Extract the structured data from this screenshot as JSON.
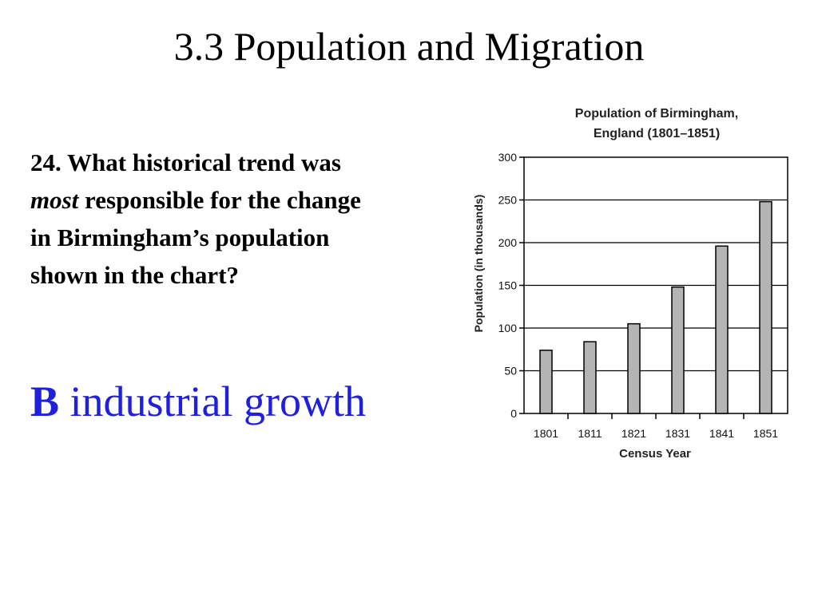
{
  "slide": {
    "title": "3.3  Population and Migration"
  },
  "question": {
    "number": "24.",
    "line1_rest": "What historical trend was",
    "line2_em": "most",
    "line2_rest": " responsible for the change",
    "line3": "in Birmingham’s population",
    "line4": "shown in the chart?"
  },
  "answer": {
    "letter": "B",
    "text": "industrial growth"
  },
  "colors": {
    "answer": "#1f1fe0",
    "bar_fill": "#b4b4b4",
    "axis": "#000000"
  },
  "chart_data": {
    "type": "bar",
    "title_line1": "Population of Birmingham,",
    "title_line2": "England (1801–1851)",
    "xlabel": "Census Year",
    "ylabel": "Population (in thousands)",
    "categories": [
      "1801",
      "1811",
      "1821",
      "1831",
      "1841",
      "1851"
    ],
    "values": [
      74,
      84,
      105,
      148,
      196,
      248
    ],
    "ylim": [
      0,
      300
    ],
    "yticks": [
      0,
      50,
      100,
      150,
      200,
      250,
      300
    ],
    "grid": true
  }
}
